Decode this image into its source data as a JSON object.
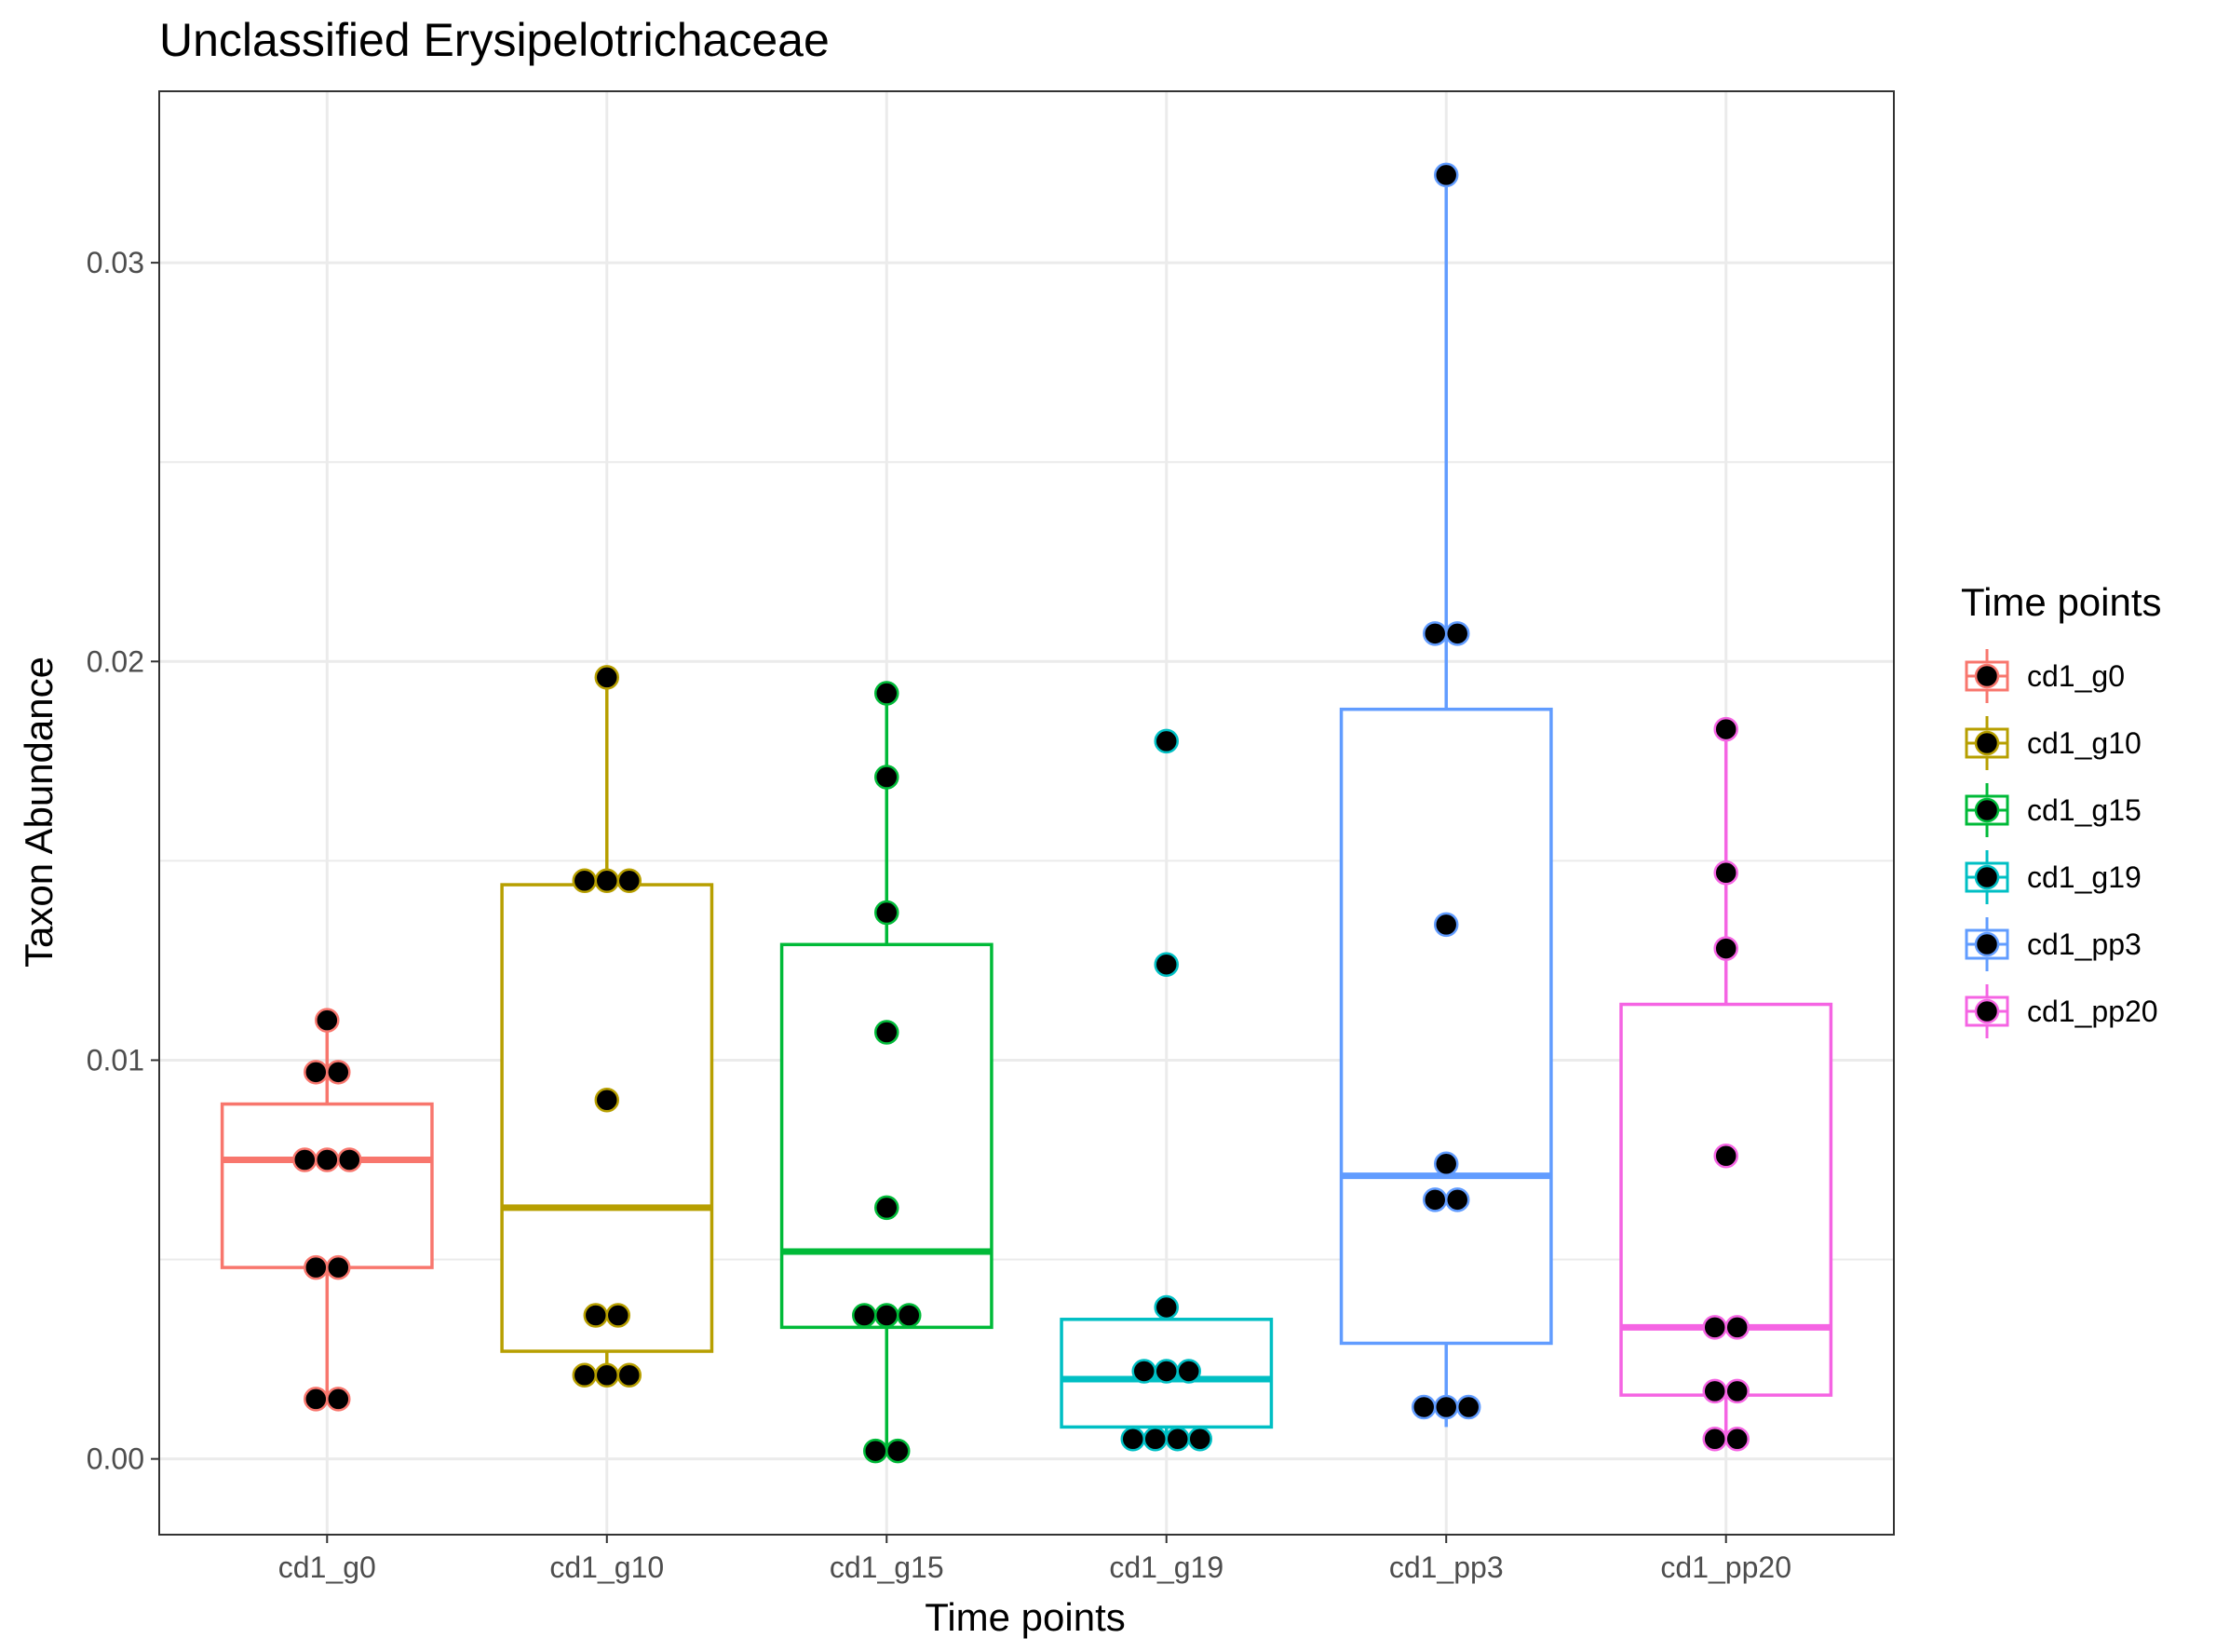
{
  "chart_data": {
    "type": "box",
    "title": "Unclassified Erysipelotrichaceae",
    "xlabel": "Time points",
    "ylabel": "Taxon Abundance",
    "ylim": [
      -0.0019,
      0.0343
    ],
    "y_ticks": [
      0.0,
      0.01,
      0.02,
      0.03
    ],
    "y_tick_labels": [
      "0.00",
      "0.01",
      "0.02",
      "0.03"
    ],
    "grid": true,
    "legend_title": "Time points",
    "legend_position": "right",
    "categories": [
      "cd1_g0",
      "cd1_g10",
      "cd1_g15",
      "cd1_g19",
      "cd1_pp3",
      "cd1_pp20"
    ],
    "series": [
      {
        "name": "cd1_g0",
        "color": "#F8766D",
        "box": {
          "whisker_low": 0.0015,
          "q1": 0.0048,
          "median": 0.0075,
          "q3": 0.0089,
          "whisker_high": 0.011
        },
        "points": [
          0.011,
          0.0097,
          0.0097,
          0.0075,
          0.0075,
          0.0075,
          0.0048,
          0.0048,
          0.0015,
          0.0015
        ]
      },
      {
        "name": "cd1_g10",
        "color": "#B79F00",
        "box": {
          "whisker_low": 0.0021,
          "q1": 0.0027,
          "median": 0.0063,
          "q3": 0.0144,
          "whisker_high": 0.0196
        },
        "points": [
          0.0196,
          0.0145,
          0.0145,
          0.0145,
          0.009,
          0.0036,
          0.0036,
          0.0021,
          0.0021,
          0.0021
        ]
      },
      {
        "name": "cd1_g15",
        "color": "#00BA38",
        "box": {
          "whisker_low": 0.0002,
          "q1": 0.0033,
          "median": 0.0052,
          "q3": 0.0129,
          "whisker_high": 0.0192
        },
        "points": [
          0.0192,
          0.0171,
          0.0137,
          0.0107,
          0.0063,
          0.0036,
          0.0036,
          0.0036,
          0.0002,
          0.0002
        ]
      },
      {
        "name": "cd1_g19",
        "color": "#00BFC4",
        "box": {
          "whisker_low": 0.0005,
          "q1": 0.0008,
          "median": 0.002,
          "q3": 0.0035,
          "whisker_high": 0.0038
        },
        "points": [
          0.018,
          0.0124,
          0.0038,
          0.0022,
          0.0022,
          0.0022,
          0.0005,
          0.0005,
          0.0005,
          0.0005
        ]
      },
      {
        "name": "cd1_pp3",
        "color": "#619CFF",
        "box": {
          "whisker_low": 0.0008,
          "q1": 0.0029,
          "median": 0.0071,
          "q3": 0.0188,
          "whisker_high": 0.0322
        },
        "points": [
          0.0322,
          0.0207,
          0.0207,
          0.0134,
          0.0074,
          0.0065,
          0.0065,
          0.0013,
          0.0013,
          0.0013
        ]
      },
      {
        "name": "cd1_pp20",
        "color": "#F564E3",
        "box": {
          "whisker_low": 0.0005,
          "q1": 0.0016,
          "median": 0.0033,
          "q3": 0.0114,
          "whisker_high": 0.0183
        },
        "points": [
          0.0183,
          0.0147,
          0.0128,
          0.0076,
          0.0033,
          0.0033,
          0.0017,
          0.0017,
          0.0005,
          0.0005
        ]
      }
    ]
  }
}
